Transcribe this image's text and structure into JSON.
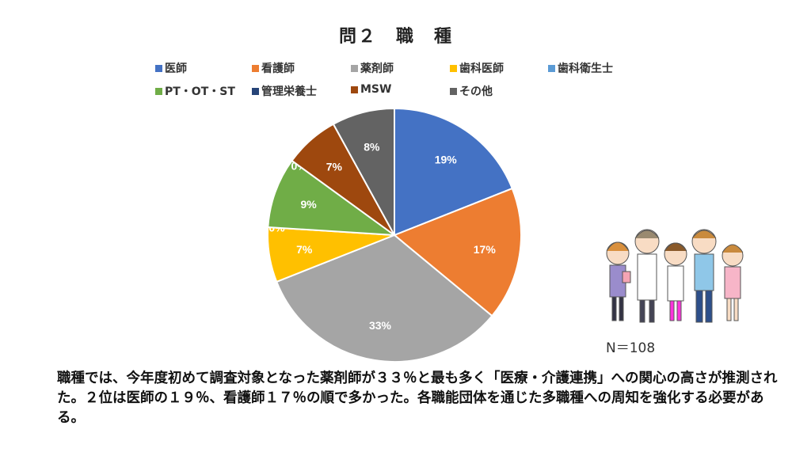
{
  "chart_data": {
    "type": "pie",
    "title": "問２　職　種",
    "categories": [
      "医師",
      "看護師",
      "薬剤師",
      "歯科医師",
      "歯科衛生士",
      "PT・OT・ST",
      "管理栄養士",
      "MSW",
      "その他"
    ],
    "values": [
      19,
      17,
      33,
      7,
      0,
      9,
      0,
      7,
      8
    ],
    "labels": [
      "19%",
      "17%",
      "33%",
      "7%",
      "0%",
      "9%",
      "0%",
      "7%",
      "8%"
    ],
    "colors": [
      "#4472C4",
      "#ED7D31",
      "#A5A5A5",
      "#FFC000",
      "#5B9BD5",
      "#70AD47",
      "#264478",
      "#9E480E",
      "#636363"
    ],
    "unit": "%",
    "legend_position": "top"
  },
  "sample_size": "N＝108",
  "note": "職種では、今年度初めて調査対象となった薬剤師が３３％と最も多く「医療・介護連携」への関心の高さが推測された。２位は医師の１９％、看護師１７％の順で多かった。各職能団体を通じた多職種への周知を強化する必要がある。"
}
